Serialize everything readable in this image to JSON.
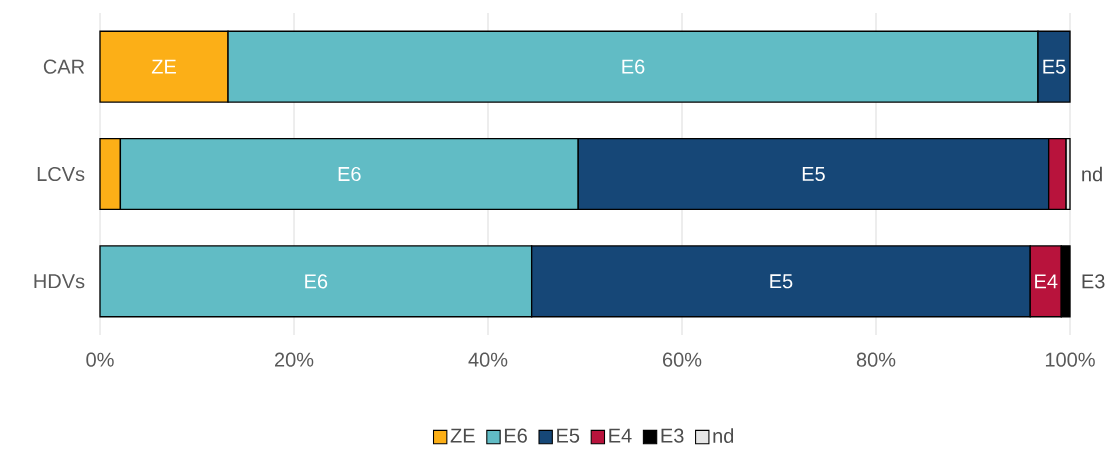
{
  "chart_data": {
    "type": "bar",
    "orientation": "horizontal",
    "stacked": true,
    "grid": "x",
    "legend": "bottom",
    "categories": [
      "CAR",
      "LCVs",
      "HDVs"
    ],
    "xlim": [
      0,
      100
    ],
    "xticks": [
      {
        "value": 0,
        "label": "0%"
      },
      {
        "value": 20,
        "label": "20%"
      },
      {
        "value": 40,
        "label": "40%"
      },
      {
        "value": 60,
        "label": "60%"
      },
      {
        "value": 80,
        "label": "80%"
      },
      {
        "value": 100,
        "label": "100%"
      }
    ],
    "series": [
      {
        "name": "ZE",
        "color": "#fcaf17",
        "values": [
          13.2,
          2.1,
          null
        ],
        "value_labels": [
          "ZE",
          null,
          null
        ]
      },
      {
        "name": "E6",
        "color": "#61bcc5",
        "values": [
          83.5,
          47.2,
          44.5
        ],
        "value_labels": [
          "E6",
          "E6",
          "E6"
        ]
      },
      {
        "name": "E5",
        "color": "#164777",
        "values": [
          3.3,
          48.5,
          51.4
        ],
        "value_labels": [
          "E5",
          "E5",
          "E5"
        ]
      },
      {
        "name": "E4",
        "color": "#b8133c",
        "values": [
          null,
          1.8,
          3.2
        ],
        "value_labels": [
          null,
          null,
          "E4"
        ]
      },
      {
        "name": "E3",
        "color": "#000000",
        "values": [
          null,
          null,
          0.9
        ],
        "value_labels": [
          null,
          null,
          "E3"
        ]
      },
      {
        "name": "nd",
        "color": "#e6e6e6",
        "values": [
          null,
          0.4,
          null
        ],
        "value_labels": [
          null,
          "nd",
          null
        ]
      }
    ]
  }
}
